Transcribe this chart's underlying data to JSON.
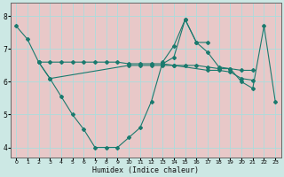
{
  "xlabel": "Humidex (Indice chaleur)",
  "bg_color": "#cce8e4",
  "plot_bg_color": "#e8c8c8",
  "grid_color": "#aadddd",
  "line_color": "#1a7a6e",
  "xlim": [
    -0.5,
    23.5
  ],
  "ylim": [
    3.7,
    8.4
  ],
  "xticks": [
    0,
    1,
    2,
    3,
    4,
    5,
    6,
    7,
    8,
    9,
    10,
    11,
    12,
    13,
    14,
    15,
    16,
    17,
    18,
    19,
    20,
    21,
    22,
    23
  ],
  "yticks": [
    4,
    5,
    6,
    7,
    8
  ],
  "series1_x": [
    0,
    1,
    2,
    3,
    4,
    5,
    6,
    7,
    8,
    9,
    10,
    11,
    12,
    13,
    14,
    15,
    16,
    17
  ],
  "series1_y": [
    7.7,
    7.3,
    6.6,
    6.1,
    5.55,
    5.0,
    4.55,
    4.0,
    4.0,
    4.0,
    4.3,
    4.6,
    5.4,
    6.6,
    7.1,
    7.9,
    7.2,
    7.2
  ],
  "series2_x": [
    2,
    3,
    4,
    5,
    6,
    7,
    8,
    9,
    10,
    11,
    12,
    13,
    14,
    15,
    16,
    17,
    18,
    19,
    20,
    21
  ],
  "series2_y": [
    6.6,
    6.6,
    6.6,
    6.6,
    6.6,
    6.6,
    6.6,
    6.6,
    6.55,
    6.55,
    6.55,
    6.55,
    6.5,
    6.5,
    6.5,
    6.45,
    6.4,
    6.4,
    6.35,
    6.35
  ],
  "series3_x": [
    2,
    3,
    10,
    11,
    12,
    13,
    14,
    17,
    18,
    19,
    20,
    21
  ],
  "series3_y": [
    6.6,
    6.1,
    6.5,
    6.5,
    6.5,
    6.5,
    6.5,
    6.35,
    6.35,
    6.3,
    6.1,
    6.05
  ],
  "series4_x": [
    13,
    14,
    15,
    16,
    17,
    18,
    19,
    20,
    21,
    22,
    23
  ],
  "series4_y": [
    6.55,
    6.75,
    7.9,
    7.2,
    6.9,
    6.45,
    6.4,
    6.0,
    5.8,
    7.7,
    5.4
  ]
}
